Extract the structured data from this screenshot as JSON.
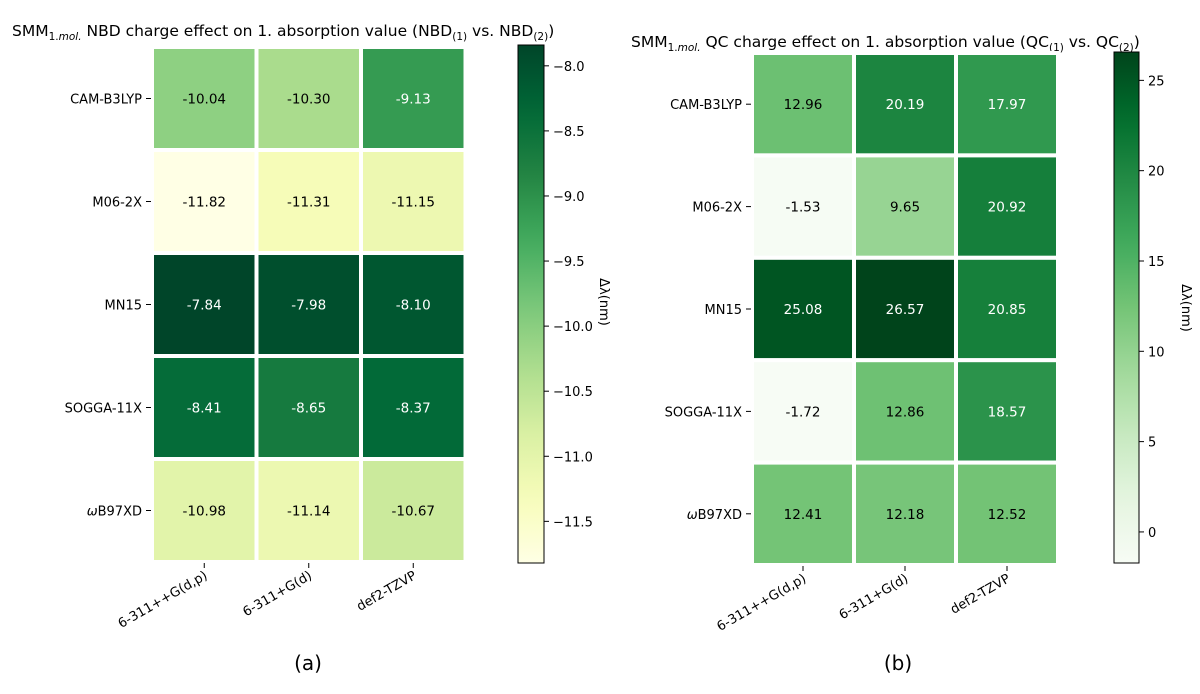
{
  "chart_data": [
    {
      "type": "heatmap",
      "panel_label": "(a)",
      "title": {
        "prefix": "SMM",
        "prefix_sub": "1.",
        "prefix_sub_italic": "mol.",
        "main": "NBD charge effect on 1. absorption value (NBD",
        "sub1": "(1)",
        "mid": " vs. NBD",
        "sub2": "(2)",
        "end": ")"
      },
      "rows": [
        "CAM-B3LYP",
        "M06-2X",
        "MN15",
        "SOGGA-11X",
        "ωB97XD"
      ],
      "cols": [
        "6-311++G(d,p)",
        "6-311+G(d)",
        "def2-TZVP"
      ],
      "values": [
        [
          -10.04,
          -10.3,
          -9.13
        ],
        [
          -11.82,
          -11.31,
          -11.15
        ],
        [
          -7.84,
          -7.98,
          -8.1
        ],
        [
          -8.41,
          -8.65,
          -8.37
        ],
        [
          -10.98,
          -11.14,
          -10.67
        ]
      ],
      "value_labels": [
        [
          "-10.04",
          "-10.30",
          "-9.13"
        ],
        [
          "-11.82",
          "-11.31",
          "-11.15"
        ],
        [
          "-7.84",
          "-7.98",
          "-8.10"
        ],
        [
          "-8.41",
          "-8.65",
          "-8.37"
        ],
        [
          "-10.98",
          "-11.14",
          "-10.67"
        ]
      ],
      "colormap": "YlGn",
      "vmin": -11.82,
      "vmax": -7.84,
      "colorbar_ticks": [
        -8.0,
        -8.5,
        -9.0,
        -9.5,
        -10.0,
        -10.5,
        -11.0,
        -11.5
      ],
      "colorbar_tick_labels": [
        "−8.0",
        "−8.5",
        "−9.0",
        "−9.5",
        "−10.0",
        "−10.5",
        "−11.0",
        "−11.5"
      ],
      "colorbar_label": "Δλ(nm)"
    },
    {
      "type": "heatmap",
      "panel_label": "(b)",
      "title": {
        "prefix": "SMM",
        "prefix_sub": "1.",
        "prefix_sub_italic": "mol.",
        "main": "QC charge effect on 1. absorption value (QC",
        "sub1": "(1)",
        "mid": " vs. QC",
        "sub2": "(2)",
        "end": ")"
      },
      "rows": [
        "CAM-B3LYP",
        "M06-2X",
        "MN15",
        "SOGGA-11X",
        "ωB97XD"
      ],
      "cols": [
        "6-311++G(d,p)",
        "6-311+G(d)",
        "def2-TZVP"
      ],
      "values": [
        [
          12.96,
          20.19,
          17.97
        ],
        [
          -1.53,
          9.65,
          20.92
        ],
        [
          25.08,
          26.57,
          20.85
        ],
        [
          -1.72,
          12.86,
          18.57
        ],
        [
          12.41,
          12.18,
          12.52
        ]
      ],
      "value_labels": [
        [
          "12.96",
          "20.19",
          "17.97"
        ],
        [
          "-1.53",
          "9.65",
          "20.92"
        ],
        [
          "25.08",
          "26.57",
          "20.85"
        ],
        [
          "-1.72",
          "12.86",
          "18.57"
        ],
        [
          "12.41",
          "12.18",
          "12.52"
        ]
      ],
      "colormap": "Greens",
      "vmin": -1.72,
      "vmax": 26.57,
      "colorbar_ticks": [
        25,
        20,
        15,
        10,
        5,
        0
      ],
      "colorbar_tick_labels": [
        "25",
        "20",
        "15",
        "10",
        "5",
        "0"
      ],
      "colorbar_label": "Δλ(nm)"
    }
  ],
  "colors": {
    "YlGn_stops": [
      "#ffffe5",
      "#f7fcb9",
      "#d9f0a3",
      "#addd8e",
      "#78c679",
      "#41ab5d",
      "#238443",
      "#006837",
      "#004529"
    ],
    "Greens_stops": [
      "#f7fcf5",
      "#e5f5e0",
      "#c7e9c0",
      "#a1d99b",
      "#74c476",
      "#41ab5d",
      "#238b45",
      "#006d2c",
      "#00441b"
    ],
    "cell_border": "#ffffff"
  }
}
